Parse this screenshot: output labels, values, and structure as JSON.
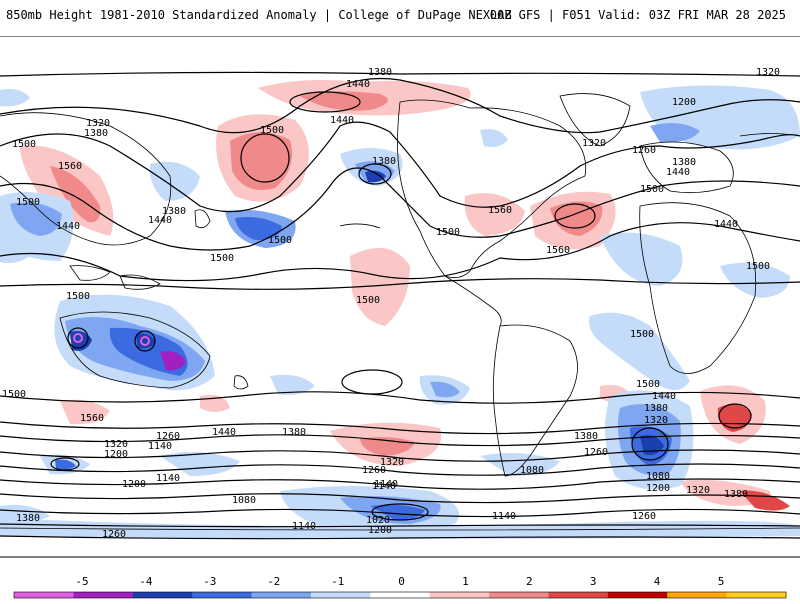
{
  "header": {
    "title": "850mb Height 1981-2010 Standardized Anomaly | College of DuPage NEXLAB",
    "model_info": "00Z GFS | F051 Valid: 03Z FRI MAR 28 2025"
  },
  "colorbar": {
    "ticks": [
      "-5",
      "-4",
      "-3",
      "-2",
      "-1",
      "0",
      "1",
      "2",
      "3",
      "4",
      "5"
    ],
    "colors": [
      "#e060e0",
      "#a020c0",
      "#1c3fb0",
      "#3c6ae0",
      "#7fa6f0",
      "#c4dbfa",
      "#ffffff",
      "#fbc6c6",
      "#f08a8a",
      "#e04848",
      "#c00000",
      "#ffa800",
      "#ffd020"
    ]
  },
  "contour_labels": [
    {
      "text": "1380"
    },
    {
      "text": "1320"
    },
    {
      "text": "1440"
    },
    {
      "text": "1320"
    },
    {
      "text": "1380"
    },
    {
      "text": "1500"
    },
    {
      "text": "1440"
    },
    {
      "text": "1200"
    },
    {
      "text": "1500"
    },
    {
      "text": "1560"
    },
    {
      "text": "1380"
    },
    {
      "text": "1320"
    },
    {
      "text": "1260"
    },
    {
      "text": "1380"
    },
    {
      "text": "1440"
    },
    {
      "text": "1500"
    },
    {
      "text": "1380"
    },
    {
      "text": "1440"
    },
    {
      "text": "1560"
    },
    {
      "text": "1440"
    },
    {
      "text": "1500"
    },
    {
      "text": "1500"
    },
    {
      "text": "1560"
    },
    {
      "text": "1500"
    },
    {
      "text": "1500"
    },
    {
      "text": "1500"
    },
    {
      "text": "1500"
    },
    {
      "text": "1500"
    },
    {
      "text": "1500"
    },
    {
      "text": "1440"
    },
    {
      "text": "1500"
    },
    {
      "text": "1440"
    },
    {
      "text": "1380"
    },
    {
      "text": "1320"
    },
    {
      "text": "1560"
    },
    {
      "text": "1500"
    },
    {
      "text": "1320"
    },
    {
      "text": "1260"
    },
    {
      "text": "1140"
    },
    {
      "text": "1440"
    },
    {
      "text": "1380"
    },
    {
      "text": "1200"
    },
    {
      "text": "1260"
    },
    {
      "text": "1320"
    },
    {
      "text": "1380"
    },
    {
      "text": "1080"
    },
    {
      "text": "1140"
    },
    {
      "text": "1200"
    },
    {
      "text": "1140"
    },
    {
      "text": "1080"
    },
    {
      "text": "1080"
    },
    {
      "text": "1020"
    },
    {
      "text": "1140"
    },
    {
      "text": "1140"
    },
    {
      "text": "1200"
    },
    {
      "text": "1260"
    },
    {
      "text": "1260"
    },
    {
      "text": "1380"
    },
    {
      "text": "1260"
    },
    {
      "text": "1200"
    },
    {
      "text": "1140"
    },
    {
      "text": "1320"
    },
    {
      "text": "1380"
    }
  ]
}
